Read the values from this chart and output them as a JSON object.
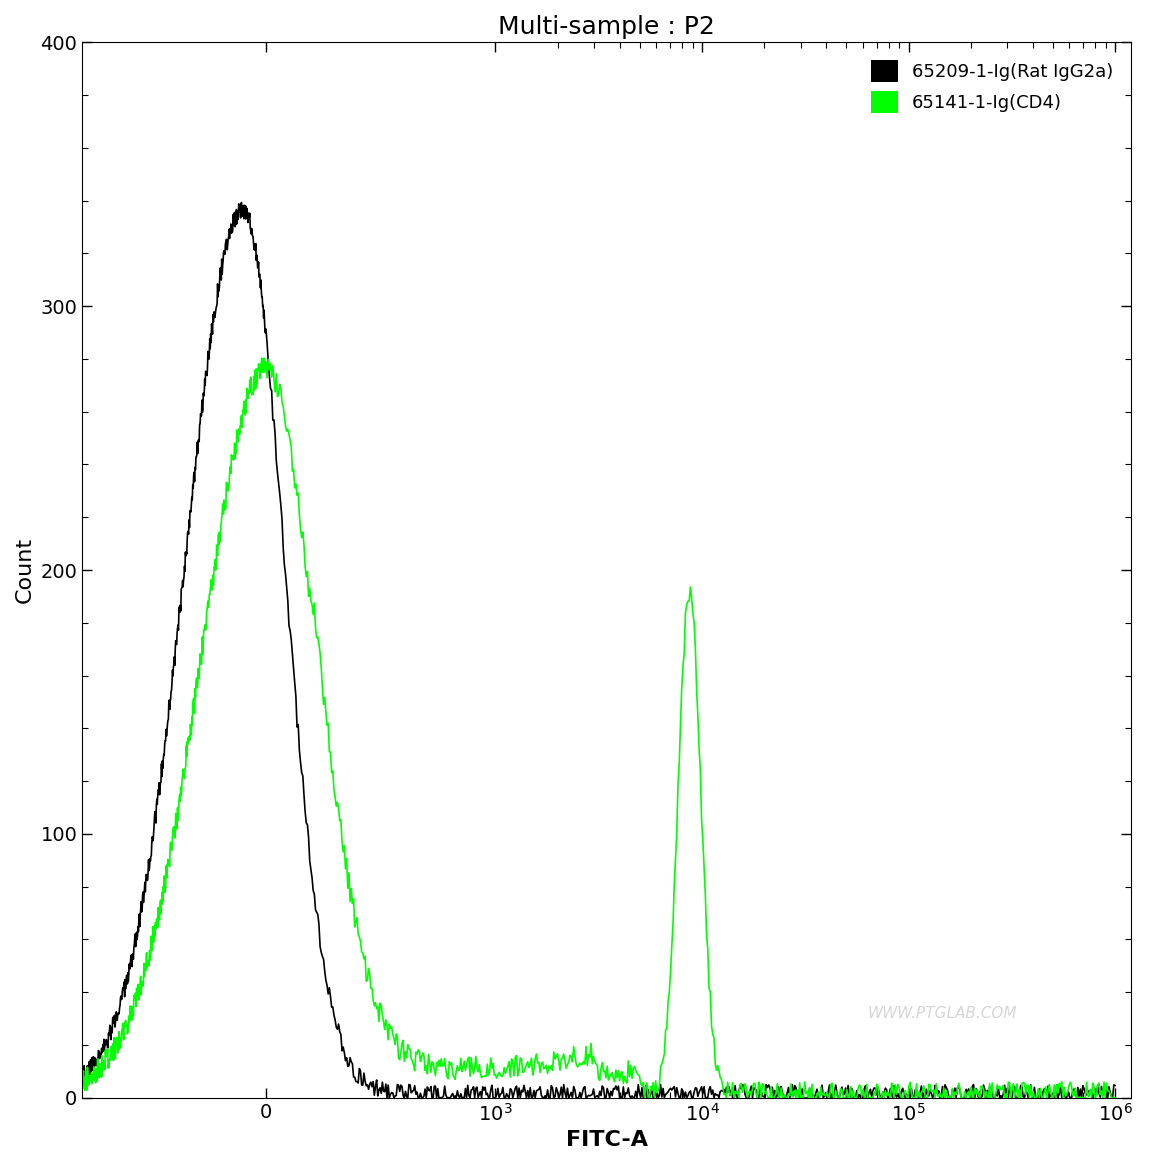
{
  "title": "Multi-sample : P2",
  "xlabel": "FITC-A",
  "ylabel": "Count",
  "ylim": [
    0,
    400
  ],
  "yticks": [
    0,
    100,
    200,
    300,
    400
  ],
  "legend_entries": [
    "65209-1-Ig(Rat IgG2a)",
    "65141-1-Ig(CD4)"
  ],
  "legend_colors": [
    "#000000",
    "#00ff00"
  ],
  "watermark": "WWW.PTGLAB.COM",
  "background_color": "#ffffff",
  "line_color_black": "#000000",
  "line_color_green": "#00ff00",
  "title_fontsize": 18,
  "axis_label_fontsize": 16,
  "tick_fontsize": 14,
  "linthresh": 1000,
  "linscale": 1.0,
  "xlim_left": -800,
  "xlim_right": 1200000
}
